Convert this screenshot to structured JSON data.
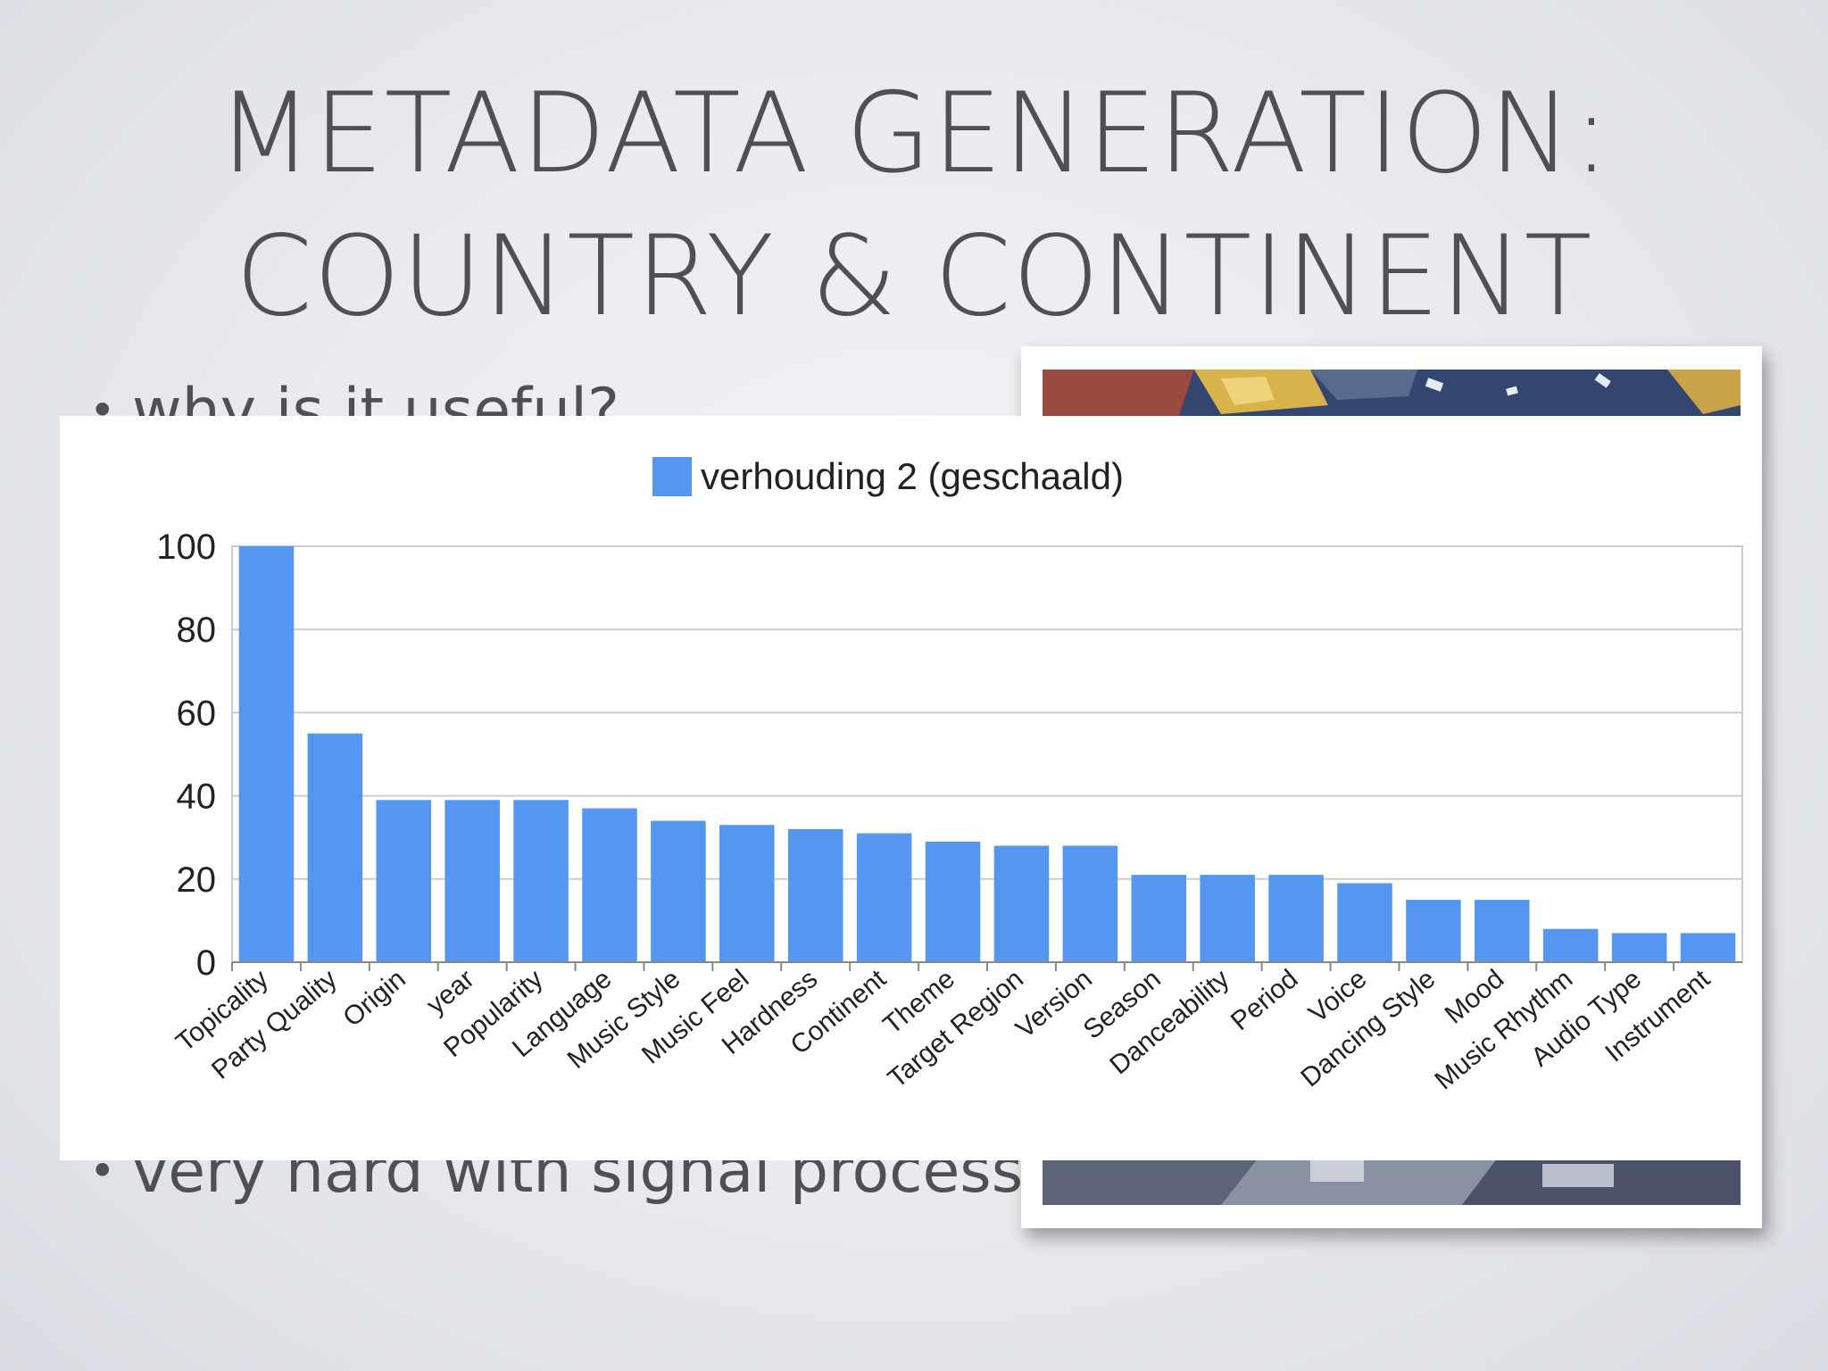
{
  "slide": {
    "title_line1": "METADATA GENERATION:",
    "title_line2": "COUNTRY & CONTINENT",
    "bullet_dot": "•",
    "bullet_1": "why is it useful?",
    "bullet_2": "very hard with signal processing"
  },
  "colors": {
    "bar": "#5597f0",
    "grid": "#cccccc",
    "text": "#4e5053"
  },
  "chart_data": {
    "type": "bar",
    "title": "",
    "xlabel": "",
    "ylabel": "",
    "legend": "top",
    "grid": true,
    "ylim": [
      0,
      100
    ],
    "yticks": [
      0,
      20,
      40,
      60,
      80,
      100
    ],
    "categories": [
      "Topicality",
      "Party Quality",
      "Origin",
      "year",
      "Popularity",
      "Language",
      "Music Style",
      "Music Feel",
      "Hardness",
      "Continent",
      "Theme",
      "Target Region",
      "Version",
      "Season",
      "Danceability",
      "Period",
      "Voice",
      "Dancing Style",
      "Mood",
      "Music Rhythm",
      "Audio Type",
      "Instrument"
    ],
    "series": [
      {
        "name": "verhouding 2 (geschaald)",
        "values": [
          100,
          55,
          39,
          39,
          39,
          37,
          34,
          33,
          32,
          31,
          29,
          28,
          28,
          21,
          21,
          21,
          19,
          15,
          15,
          8,
          7,
          7
        ]
      }
    ]
  }
}
